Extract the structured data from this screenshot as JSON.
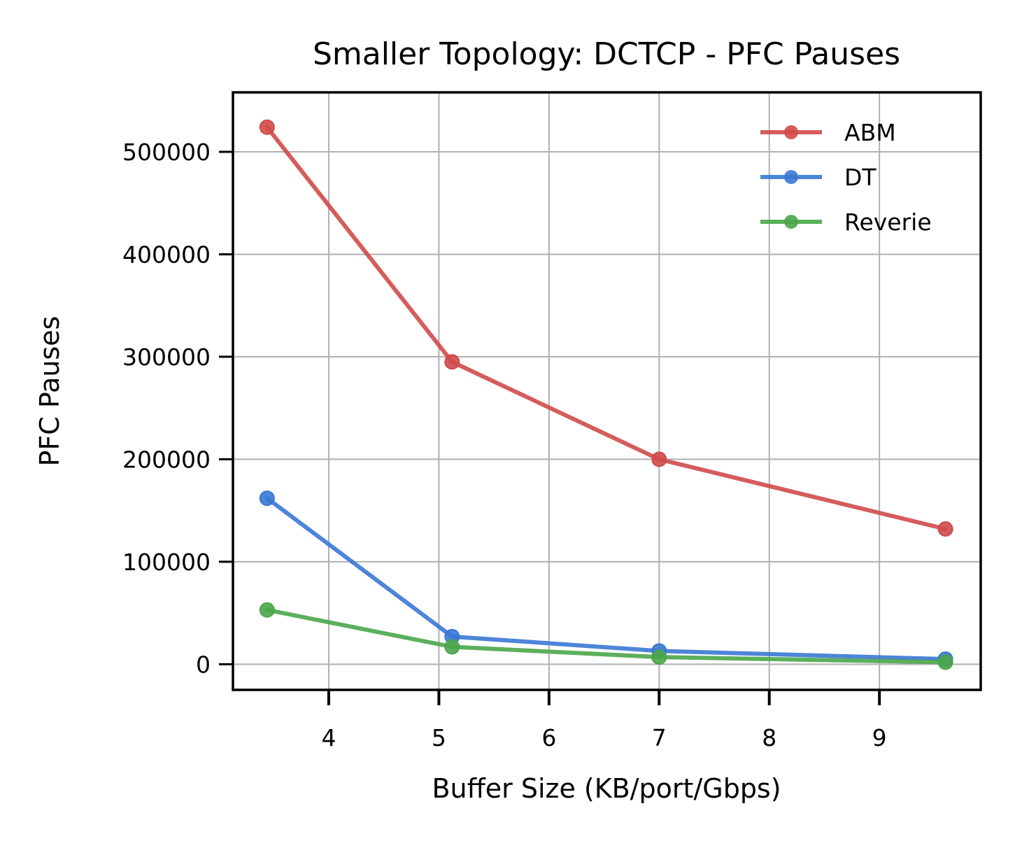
{
  "chart_data": {
    "type": "line",
    "title": "Smaller Topology: DCTCP - PFC Pauses",
    "xlabel": "Buffer Size (KB/port/Gbps)",
    "ylabel": "PFC Pauses",
    "xlim": [
      3.13,
      9.92
    ],
    "ylim": [
      -25000,
      558000
    ],
    "xticks": [
      4,
      5,
      6,
      7,
      8,
      9
    ],
    "yticks": [
      0,
      100000,
      200000,
      300000,
      400000,
      500000
    ],
    "grid": true,
    "legend_position": "top-right",
    "series": [
      {
        "name": "ABM",
        "color": "#d04a4a",
        "x": [
          3.44,
          5.12,
          7.0,
          9.6
        ],
        "y": [
          524000,
          295000,
          200000,
          132000
        ]
      },
      {
        "name": "DT",
        "color": "#3a78d4",
        "x": [
          3.44,
          5.12,
          7.0,
          9.6
        ],
        "y": [
          162000,
          27000,
          13000,
          5000
        ]
      },
      {
        "name": "Reverie",
        "color": "#4aa64a",
        "x": [
          3.44,
          5.12,
          7.0,
          9.6
        ],
        "y": [
          53000,
          17000,
          7000,
          2000
        ]
      }
    ]
  }
}
